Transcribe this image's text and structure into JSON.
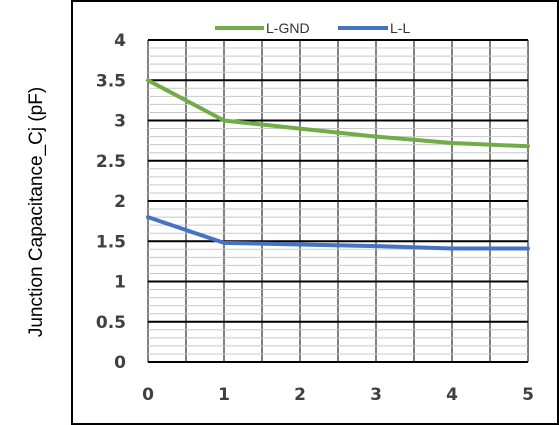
{
  "chart_data": {
    "type": "line",
    "ylabel": "Junction Capacitance_Cj (pF)",
    "xlabel": "",
    "x": [
      0,
      1,
      2,
      3,
      4,
      5
    ],
    "x_ticks": [
      "0",
      "1",
      "2",
      "3",
      "4",
      "5"
    ],
    "y_ticks": [
      "0",
      "0.5",
      "1",
      "1.5",
      "2",
      "2.5",
      "3",
      "3.5",
      "4"
    ],
    "xlim": [
      0,
      5
    ],
    "ylim": [
      0,
      4
    ],
    "grid": true,
    "legend_position": "top-center",
    "series": [
      {
        "name": "L-GND",
        "color": "#70AD47",
        "values": [
          3.5,
          3.0,
          2.9,
          2.8,
          2.72,
          2.68
        ]
      },
      {
        "name": "L-L",
        "color": "#4472C4",
        "values": [
          1.8,
          1.48,
          1.46,
          1.44,
          1.41,
          1.41
        ]
      }
    ]
  }
}
